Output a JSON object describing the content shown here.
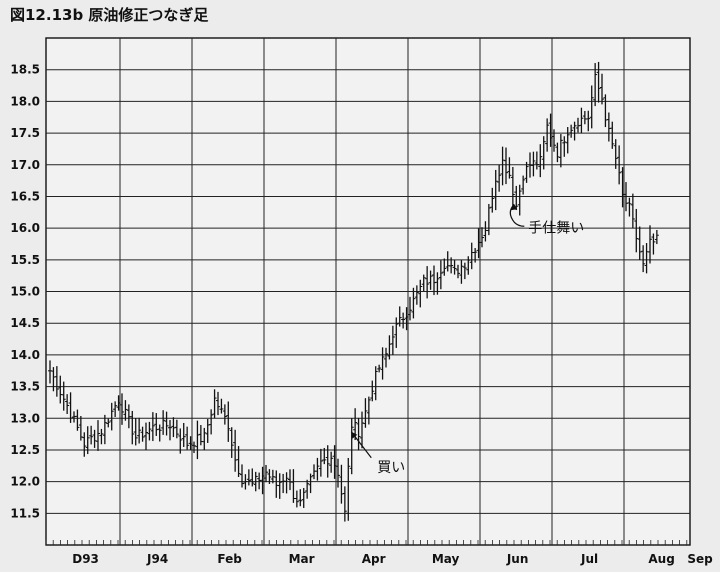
{
  "chart_data": {
    "type": "ohlc",
    "title": "図12.13b 原油修正つなぎ足",
    "xlabel": "",
    "ylabel": "",
    "ylim": [
      11.0,
      19.0
    ],
    "yticks": [
      11.5,
      12.0,
      12.5,
      13.0,
      13.5,
      14.0,
      14.5,
      15.0,
      15.5,
      16.0,
      16.5,
      17.0,
      17.5,
      18.0,
      18.5
    ],
    "ytick_labels": [
      "11.5",
      "12.0",
      "12.5",
      "13.0",
      "13.5",
      "14.0",
      "14.5",
      "15.0",
      "15.5",
      "16.0",
      "16.5",
      "17.0",
      "17.5",
      "18.0",
      "18.5"
    ],
    "months": [
      "D93",
      "J94",
      "Feb",
      "Mar",
      "Apr",
      "May",
      "Jun",
      "Jul",
      "Aug",
      "Sep"
    ],
    "grid": true,
    "bars_per_month": 21,
    "anchors": [
      [
        0,
        13.75
      ],
      [
        5,
        13.2
      ],
      [
        10,
        12.6
      ],
      [
        15,
        12.8
      ],
      [
        20,
        13.3
      ],
      [
        25,
        12.7
      ],
      [
        30,
        12.85
      ],
      [
        35,
        12.9
      ],
      [
        40,
        12.6
      ],
      [
        45,
        12.7
      ],
      [
        48,
        13.3
      ],
      [
        52,
        12.9
      ],
      [
        54,
        12.35
      ],
      [
        56,
        12.05
      ],
      [
        59,
        11.95
      ],
      [
        63,
        12.15
      ],
      [
        66,
        11.95
      ],
      [
        69,
        12.1
      ],
      [
        71,
        11.8
      ],
      [
        73,
        11.65
      ],
      [
        76,
        12.0
      ],
      [
        79,
        12.3
      ],
      [
        82,
        12.4
      ],
      [
        84,
        12.15
      ],
      [
        86,
        11.5
      ],
      [
        88,
        12.9
      ],
      [
        90,
        12.8
      ],
      [
        92,
        13.1
      ],
      [
        94,
        13.5
      ],
      [
        96,
        13.8
      ],
      [
        98,
        14.0
      ],
      [
        100,
        14.35
      ],
      [
        103,
        14.6
      ],
      [
        106,
        14.85
      ],
      [
        109,
        15.15
      ],
      [
        112,
        15.2
      ],
      [
        115,
        15.45
      ],
      [
        118,
        15.3
      ],
      [
        121,
        15.45
      ],
      [
        124,
        15.7
      ],
      [
        127,
        16.0
      ],
      [
        130,
        16.8
      ],
      [
        132,
        17.05
      ],
      [
        134,
        16.85
      ],
      [
        136,
        16.35
      ],
      [
        138,
        16.85
      ],
      [
        140,
        17.0
      ],
      [
        143,
        17.05
      ],
      [
        145,
        17.6
      ],
      [
        148,
        17.2
      ],
      [
        151,
        17.55
      ],
      [
        154,
        17.7
      ],
      [
        157,
        17.75
      ],
      [
        159,
        18.35
      ],
      [
        161,
        18.05
      ],
      [
        163,
        17.5
      ],
      [
        165,
        17.1
      ],
      [
        167,
        16.5
      ],
      [
        169,
        16.3
      ],
      [
        171,
        15.85
      ],
      [
        173,
        15.4
      ],
      [
        175,
        15.75
      ],
      [
        177,
        15.8
      ]
    ],
    "annotations": [
      {
        "text": "買い",
        "arrow_at_bar": 87,
        "arrow_at_value": 12.85
      },
      {
        "text": "手仕舞い",
        "arrow_at_bar": 136,
        "arrow_at_value": 16.25
      }
    ]
  }
}
